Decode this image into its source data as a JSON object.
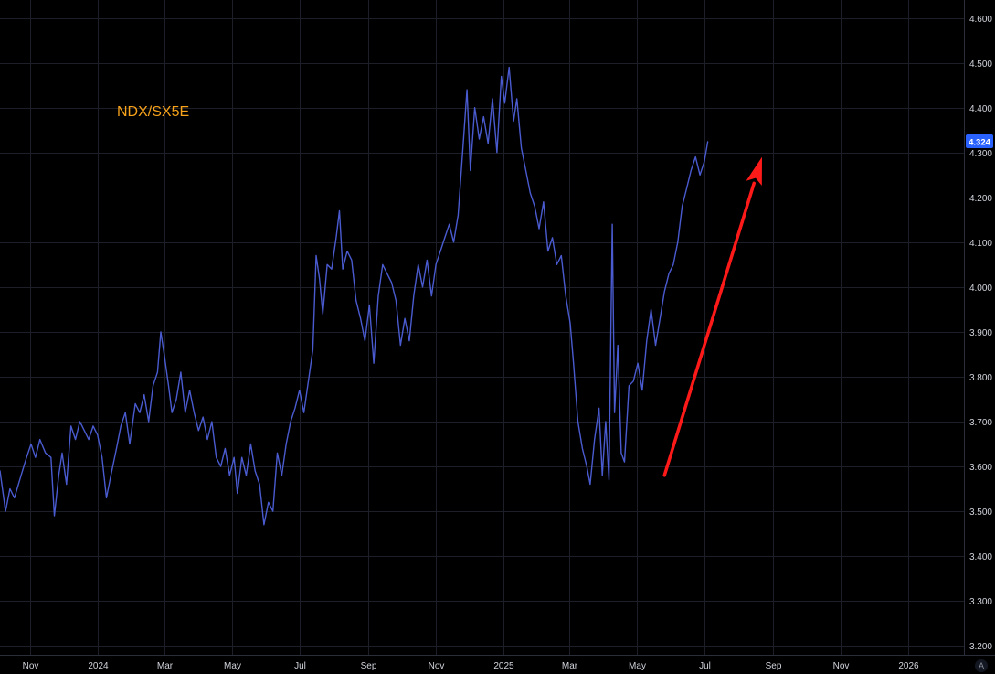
{
  "chart_data": {
    "type": "line",
    "title": "NDX/SX5E",
    "xlabel": "",
    "ylabel": "",
    "x_tick_labels": [
      "Nov",
      "2024",
      "Mar",
      "May",
      "Jul",
      "Sep",
      "Nov",
      "2025",
      "Mar",
      "May",
      "Jul",
      "Sep",
      "Nov",
      "2026"
    ],
    "y_tick_labels": [
      "3.200",
      "3.300",
      "3.400",
      "3.500",
      "3.600",
      "3.700",
      "3.800",
      "3.900",
      "4.000",
      "4.100",
      "4.200",
      "4.300",
      "4.400",
      "4.500",
      "4.600"
    ],
    "ylim": [
      3.18,
      4.64
    ],
    "xlim": [
      "2023-10-05",
      "2026-02-20"
    ],
    "grid": true,
    "last_value_label": "4.324",
    "corner_label": "A",
    "colors": {
      "background": "#000000",
      "grid": "#1c1f27",
      "line": "#4a5bd0",
      "arrow": "#ff1a1a",
      "title": "#f7a21b",
      "axis_text": "#d1d4dc",
      "last_label_bg": "#2962ff"
    },
    "annotations": [
      {
        "type": "arrow",
        "from": {
          "date": "2025-05-26",
          "value": 3.58
        },
        "to": {
          "date": "2025-08-22",
          "value": 4.29
        }
      }
    ],
    "series": [
      {
        "points": [
          [
            "2023-10-05",
            3.59
          ],
          [
            "2023-10-10",
            3.5
          ],
          [
            "2023-10-14",
            3.55
          ],
          [
            "2023-10-18",
            3.53
          ],
          [
            "2023-10-24",
            3.58
          ],
          [
            "2023-10-29",
            3.62
          ],
          [
            "2023-11-02",
            3.65
          ],
          [
            "2023-11-06",
            3.62
          ],
          [
            "2023-11-10",
            3.66
          ],
          [
            "2023-11-15",
            3.63
          ],
          [
            "2023-11-20",
            3.62
          ],
          [
            "2023-11-23",
            3.49
          ],
          [
            "2023-11-27",
            3.58
          ],
          [
            "2023-11-30",
            3.63
          ],
          [
            "2023-12-04",
            3.56
          ],
          [
            "2023-12-08",
            3.69
          ],
          [
            "2023-12-12",
            3.66
          ],
          [
            "2023-12-16",
            3.7
          ],
          [
            "2023-12-20",
            3.68
          ],
          [
            "2023-12-24",
            3.66
          ],
          [
            "2023-12-28",
            3.69
          ],
          [
            "2024-01-01",
            3.67
          ],
          [
            "2024-01-05",
            3.62
          ],
          [
            "2024-01-09",
            3.53
          ],
          [
            "2024-01-13",
            3.58
          ],
          [
            "2024-01-18",
            3.64
          ],
          [
            "2024-01-22",
            3.69
          ],
          [
            "2024-01-26",
            3.72
          ],
          [
            "2024-01-30",
            3.65
          ],
          [
            "2024-02-04",
            3.74
          ],
          [
            "2024-02-08",
            3.72
          ],
          [
            "2024-02-12",
            3.76
          ],
          [
            "2024-02-16",
            3.7
          ],
          [
            "2024-02-20",
            3.78
          ],
          [
            "2024-02-24",
            3.81
          ],
          [
            "2024-02-27",
            3.9
          ],
          [
            "2024-03-01",
            3.85
          ],
          [
            "2024-03-05",
            3.78
          ],
          [
            "2024-03-08",
            3.72
          ],
          [
            "2024-03-12",
            3.75
          ],
          [
            "2024-03-16",
            3.81
          ],
          [
            "2024-03-20",
            3.72
          ],
          [
            "2024-03-24",
            3.77
          ],
          [
            "2024-03-28",
            3.72
          ],
          [
            "2024-04-01",
            3.68
          ],
          [
            "2024-04-05",
            3.71
          ],
          [
            "2024-04-09",
            3.66
          ],
          [
            "2024-04-13",
            3.7
          ],
          [
            "2024-04-17",
            3.62
          ],
          [
            "2024-04-21",
            3.6
          ],
          [
            "2024-04-25",
            3.64
          ],
          [
            "2024-04-29",
            3.58
          ],
          [
            "2024-05-03",
            3.62
          ],
          [
            "2024-05-06",
            3.54
          ],
          [
            "2024-05-10",
            3.62
          ],
          [
            "2024-05-14",
            3.58
          ],
          [
            "2024-05-18",
            3.65
          ],
          [
            "2024-05-22",
            3.59
          ],
          [
            "2024-05-26",
            3.56
          ],
          [
            "2024-05-30",
            3.47
          ],
          [
            "2024-06-03",
            3.52
          ],
          [
            "2024-06-07",
            3.5
          ],
          [
            "2024-06-11",
            3.63
          ],
          [
            "2024-06-15",
            3.58
          ],
          [
            "2024-06-19",
            3.65
          ],
          [
            "2024-06-23",
            3.7
          ],
          [
            "2024-06-27",
            3.73
          ],
          [
            "2024-07-01",
            3.77
          ],
          [
            "2024-07-05",
            3.72
          ],
          [
            "2024-07-09",
            3.79
          ],
          [
            "2024-07-13",
            3.86
          ],
          [
            "2024-07-16",
            4.07
          ],
          [
            "2024-07-19",
            4.02
          ],
          [
            "2024-07-22",
            3.94
          ],
          [
            "2024-07-26",
            4.05
          ],
          [
            "2024-07-30",
            4.04
          ],
          [
            "2024-08-03",
            4.11
          ],
          [
            "2024-08-06",
            4.17
          ],
          [
            "2024-08-09",
            4.04
          ],
          [
            "2024-08-13",
            4.08
          ],
          [
            "2024-08-17",
            4.06
          ],
          [
            "2024-08-21",
            3.97
          ],
          [
            "2024-08-25",
            3.93
          ],
          [
            "2024-08-29",
            3.88
          ],
          [
            "2024-09-02",
            3.96
          ],
          [
            "2024-09-06",
            3.83
          ],
          [
            "2024-09-10",
            3.98
          ],
          [
            "2024-09-14",
            4.05
          ],
          [
            "2024-09-18",
            4.03
          ],
          [
            "2024-09-22",
            4.01
          ],
          [
            "2024-09-26",
            3.97
          ],
          [
            "2024-09-30",
            3.87
          ],
          [
            "2024-10-04",
            3.93
          ],
          [
            "2024-10-08",
            3.88
          ],
          [
            "2024-10-12",
            3.98
          ],
          [
            "2024-10-16",
            4.05
          ],
          [
            "2024-10-20",
            4.0
          ],
          [
            "2024-10-24",
            4.06
          ],
          [
            "2024-10-28",
            3.98
          ],
          [
            "2024-11-01",
            4.05
          ],
          [
            "2024-11-05",
            4.08
          ],
          [
            "2024-11-09",
            4.11
          ],
          [
            "2024-11-13",
            4.14
          ],
          [
            "2024-11-17",
            4.1
          ],
          [
            "2024-11-21",
            4.16
          ],
          [
            "2024-11-25",
            4.3
          ],
          [
            "2024-11-29",
            4.44
          ],
          [
            "2024-12-02",
            4.26
          ],
          [
            "2024-12-06",
            4.4
          ],
          [
            "2024-12-10",
            4.33
          ],
          [
            "2024-12-14",
            4.38
          ],
          [
            "2024-12-18",
            4.32
          ],
          [
            "2024-12-22",
            4.42
          ],
          [
            "2024-12-26",
            4.3
          ],
          [
            "2024-12-30",
            4.47
          ],
          [
            "2025-01-02",
            4.41
          ],
          [
            "2025-01-06",
            4.49
          ],
          [
            "2025-01-10",
            4.37
          ],
          [
            "2025-01-13",
            4.42
          ],
          [
            "2025-01-17",
            4.31
          ],
          [
            "2025-01-21",
            4.26
          ],
          [
            "2025-01-25",
            4.21
          ],
          [
            "2025-01-29",
            4.18
          ],
          [
            "2025-02-02",
            4.13
          ],
          [
            "2025-02-06",
            4.19
          ],
          [
            "2025-02-10",
            4.08
          ],
          [
            "2025-02-14",
            4.11
          ],
          [
            "2025-02-18",
            4.05
          ],
          [
            "2025-02-22",
            4.07
          ],
          [
            "2025-02-26",
            3.98
          ],
          [
            "2025-03-02",
            3.92
          ],
          [
            "2025-03-05",
            3.83
          ],
          [
            "2025-03-09",
            3.7
          ],
          [
            "2025-03-13",
            3.64
          ],
          [
            "2025-03-17",
            3.6
          ],
          [
            "2025-03-20",
            3.56
          ],
          [
            "2025-03-24",
            3.66
          ],
          [
            "2025-03-28",
            3.73
          ],
          [
            "2025-03-31",
            3.58
          ],
          [
            "2025-04-03",
            3.7
          ],
          [
            "2025-04-06",
            3.57
          ],
          [
            "2025-04-09",
            4.14
          ],
          [
            "2025-04-11",
            3.72
          ],
          [
            "2025-04-14",
            3.87
          ],
          [
            "2025-04-17",
            3.63
          ],
          [
            "2025-04-20",
            3.61
          ],
          [
            "2025-04-24",
            3.78
          ],
          [
            "2025-04-28",
            3.79
          ],
          [
            "2025-05-02",
            3.83
          ],
          [
            "2025-05-06",
            3.77
          ],
          [
            "2025-05-10",
            3.88
          ],
          [
            "2025-05-14",
            3.95
          ],
          [
            "2025-05-18",
            3.87
          ],
          [
            "2025-05-22",
            3.93
          ],
          [
            "2025-05-26",
            3.99
          ],
          [
            "2025-05-30",
            4.03
          ],
          [
            "2025-06-03",
            4.05
          ],
          [
            "2025-06-07",
            4.1
          ],
          [
            "2025-06-11",
            4.18
          ],
          [
            "2025-06-15",
            4.22
          ],
          [
            "2025-06-19",
            4.26
          ],
          [
            "2025-06-23",
            4.29
          ],
          [
            "2025-06-27",
            4.25
          ],
          [
            "2025-07-01",
            4.28
          ],
          [
            "2025-07-04",
            4.324
          ]
        ]
      }
    ]
  }
}
